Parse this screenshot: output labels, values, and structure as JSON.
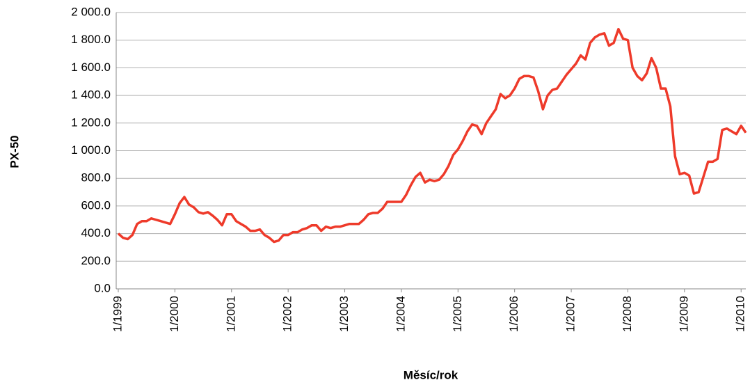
{
  "chart_data": {
    "type": "line",
    "y_label": "PX-50",
    "x_label": "Měsíc/rok",
    "categories": [
      "1/1999",
      null,
      null,
      null,
      null,
      null,
      null,
      null,
      null,
      null,
      null,
      null,
      "1/2000",
      null,
      null,
      null,
      null,
      null,
      null,
      null,
      null,
      null,
      null,
      null,
      "1/2001",
      null,
      null,
      null,
      null,
      null,
      null,
      null,
      null,
      null,
      null,
      null,
      "1/2002",
      null,
      null,
      null,
      null,
      null,
      null,
      null,
      null,
      null,
      null,
      null,
      "1/2003",
      null,
      null,
      null,
      null,
      null,
      null,
      null,
      null,
      null,
      null,
      null,
      "1/2004",
      null,
      null,
      null,
      null,
      null,
      null,
      null,
      null,
      null,
      null,
      null,
      "1/2005",
      null,
      null,
      null,
      null,
      null,
      null,
      null,
      null,
      null,
      null,
      null,
      "1/2006",
      null,
      null,
      null,
      null,
      null,
      null,
      null,
      null,
      null,
      null,
      null,
      "1/2007",
      null,
      null,
      null,
      null,
      null,
      null,
      null,
      null,
      null,
      null,
      null,
      "1/2008",
      null,
      null,
      null,
      null,
      null,
      null,
      null,
      null,
      null,
      null,
      null,
      "1/2009",
      null,
      null,
      null,
      null,
      null,
      null,
      null,
      null,
      null,
      null,
      null,
      "1/2010",
      null
    ],
    "series": [
      {
        "name": "PX-50",
        "color": "#ee3a2a",
        "values": [
          400,
          370,
          360,
          390,
          470,
          490,
          490,
          510,
          500,
          490,
          480,
          470,
          540,
          620,
          665,
          610,
          590,
          555,
          545,
          555,
          530,
          500,
          460,
          540,
          540,
          490,
          470,
          450,
          420,
          420,
          430,
          390,
          370,
          340,
          350,
          390,
          390,
          410,
          410,
          430,
          440,
          460,
          460,
          420,
          450,
          440,
          450,
          450,
          460,
          470,
          470,
          470,
          500,
          540,
          550,
          550,
          580,
          630,
          630,
          630,
          630,
          680,
          750,
          810,
          840,
          770,
          790,
          780,
          790,
          830,
          890,
          970,
          1010,
          1070,
          1140,
          1190,
          1180,
          1120,
          1200,
          1250,
          1300,
          1410,
          1380,
          1400,
          1450,
          1520,
          1540,
          1540,
          1530,
          1430,
          1300,
          1400,
          1440,
          1450,
          1500,
          1550,
          1590,
          1630,
          1690,
          1660,
          1780,
          1820,
          1840,
          1850,
          1760,
          1780,
          1880,
          1810,
          1800,
          1600,
          1540,
          1510,
          1560,
          1670,
          1600,
          1450,
          1450,
          1320,
          960,
          830,
          840,
          820,
          690,
          700,
          810,
          920,
          920,
          940,
          1150,
          1160,
          1140,
          1120,
          1180,
          1130
        ]
      }
    ],
    "ylim": [
      0,
      2000
    ],
    "yticks": [
      {
        "value": 0,
        "label": "0.0"
      },
      {
        "value": 200,
        "label": "200.0"
      },
      {
        "value": 400,
        "label": "400.0"
      },
      {
        "value": 600,
        "label": "600.0"
      },
      {
        "value": 800,
        "label": "800.0"
      },
      {
        "value": 1000,
        "label": "1 000.0"
      },
      {
        "value": 1200,
        "label": "1 200.0"
      },
      {
        "value": 1400,
        "label": "1 400.0"
      },
      {
        "value": 1600,
        "label": "1 600.0"
      },
      {
        "value": 1800,
        "label": "1 800.0"
      },
      {
        "value": 2000,
        "label": "2 000.0"
      }
    ],
    "grid": true
  }
}
